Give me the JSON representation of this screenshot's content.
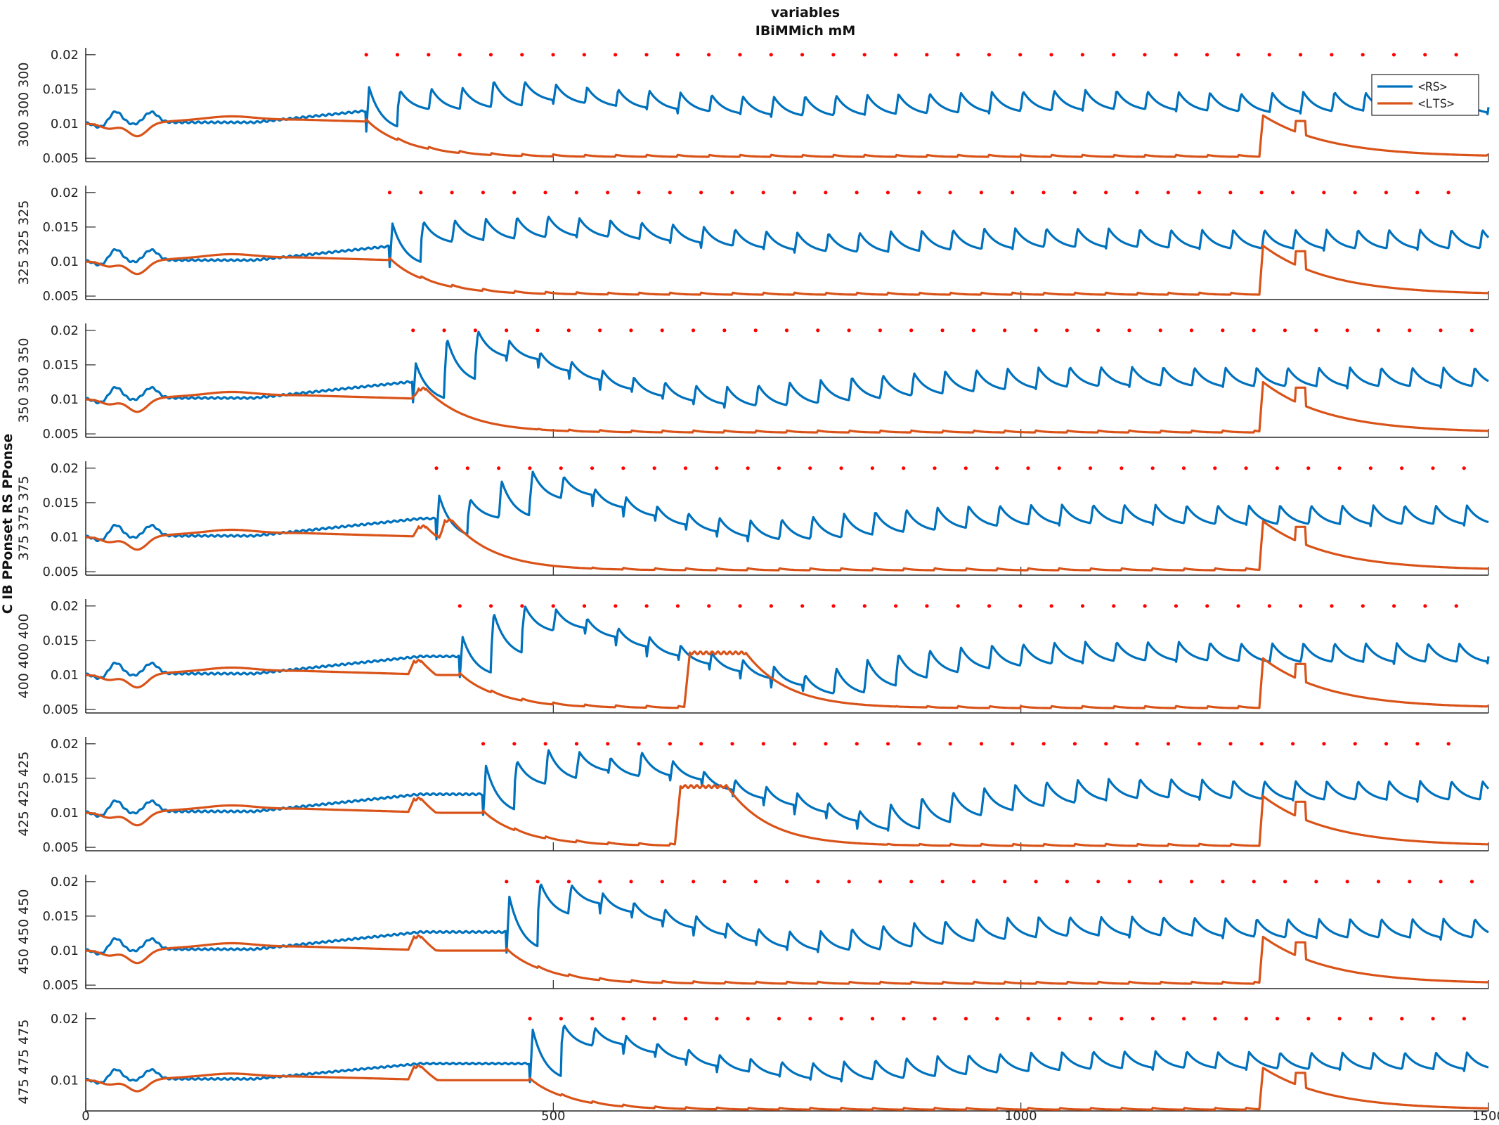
{
  "figure": {
    "title_line1": "variables",
    "title_line2": "IBiMMich mM",
    "ylabel_outer": "C IB PPonset RS PPonse"
  },
  "legend": {
    "items": [
      {
        "label": "<RS>",
        "color": "#0072BD"
      },
      {
        "label": "<LTS>",
        "color": "#D95319"
      }
    ]
  },
  "colors": {
    "rs": "#0072BD",
    "lts": "#D95319",
    "spikes": "#FF0000",
    "axis": "#262626"
  },
  "chart_data": {
    "type": "line",
    "x_range": [
      0,
      1500
    ],
    "x_ticks": [
      0,
      500,
      1000,
      1500
    ],
    "x_tick_labels": [
      "0",
      "500",
      "1000",
      "1500"
    ],
    "y_range": [
      0.0045,
      0.021
    ],
    "y_ticks": [
      0.005,
      0.01,
      0.015,
      0.02
    ],
    "y_tick_labels": [
      "0.005",
      "0.01",
      "0.015",
      "0.02"
    ],
    "last_panel_y_tick_labels": [
      "",
      "0.01",
      "",
      "0.02"
    ],
    "series_names": [
      "<RS>",
      "<LTS>"
    ],
    "spike_y": 0.02,
    "panels": [
      {
        "row_label": "300 300 300",
        "pp_onset": 300,
        "spike_start": 300,
        "spike_end": 1485,
        "rs_peaks": [
          0.0153,
          0.0148,
          0.0151,
          0.0152,
          0.0162,
          0.0161,
          0.0157,
          0.0153,
          0.015,
          0.0148,
          0.0145,
          0.0142,
          0.014,
          0.0139,
          0.014,
          0.0141,
          0.0142,
          0.0143,
          0.0144,
          0.0145,
          0.0146,
          0.0147,
          0.0148,
          0.0149,
          0.0148,
          0.0147,
          0.0146,
          0.0145,
          0.0144,
          0.0145,
          0.0146,
          0.0146,
          0.0145,
          0.0145,
          0.0144,
          0.0143,
          0.0142,
          0.0142,
          0.0142,
          0.0142,
          0.0142,
          0.0142,
          0.0142,
          0.0142,
          0.0142,
          0.0142
        ],
        "lts_bumps": [],
        "lts_big_at": 1255,
        "lts_big_peak": 0.0112
      },
      {
        "row_label": "325 325 325",
        "pp_onset": 325,
        "spike_start": 325,
        "spike_end": 1485,
        "rs_peaks": [
          0.0155,
          0.0158,
          0.016,
          0.0162,
          0.0164,
          0.0166,
          0.0163,
          0.016,
          0.0157,
          0.0154,
          0.015,
          0.0147,
          0.0144,
          0.0142,
          0.0141,
          0.0142,
          0.0144,
          0.0145,
          0.0146,
          0.0148,
          0.0148,
          0.0148,
          0.0148,
          0.0148,
          0.0147,
          0.0146,
          0.0146,
          0.0146,
          0.0146,
          0.0146,
          0.0146,
          0.0146,
          0.0146,
          0.0146,
          0.0146,
          0.0146,
          0.0146,
          0.0146,
          0.0146,
          0.0146,
          0.0146,
          0.0146,
          0.0146,
          0.0146,
          0.0146
        ],
        "lts_bumps": [],
        "lts_big_at": 1255,
        "lts_big_peak": 0.0123
      },
      {
        "row_label": "350 350 350",
        "pp_onset": 350,
        "spike_start": 350,
        "spike_end": 1485,
        "rs_peaks": [
          0.0152,
          0.0188,
          0.0199,
          0.0185,
          0.0168,
          0.0155,
          0.0142,
          0.0132,
          0.0125,
          0.012,
          0.0118,
          0.0121,
          0.0125,
          0.0128,
          0.0132,
          0.0135,
          0.0138,
          0.0141,
          0.0143,
          0.0145,
          0.0146,
          0.0147,
          0.0147,
          0.0147,
          0.0147,
          0.0146,
          0.0146,
          0.0146,
          0.0146,
          0.0146,
          0.0146,
          0.0146,
          0.0146,
          0.0146,
          0.0146,
          0.0146,
          0.0146,
          0.0146,
          0.0146,
          0.0146,
          0.0146,
          0.0146,
          0.0146,
          0.0146
        ],
        "lts_bumps": [
          {
            "at": 350,
            "peak": 0.0115
          }
        ],
        "lts_big_at": 1255,
        "lts_big_peak": 0.0125
      },
      {
        "row_label": "375 375 375",
        "pp_onset": 375,
        "spike_start": 375,
        "spike_end": 1485,
        "rs_peaks": [
          0.016,
          0.0155,
          0.0182,
          0.0195,
          0.0188,
          0.017,
          0.0158,
          0.0145,
          0.0135,
          0.0128,
          0.0124,
          0.0126,
          0.013,
          0.0134,
          0.0137,
          0.014,
          0.0143,
          0.0145,
          0.0146,
          0.0147,
          0.0147,
          0.0147,
          0.0147,
          0.0147,
          0.0146,
          0.0146,
          0.0146,
          0.0146,
          0.0146,
          0.0146,
          0.0146,
          0.0146,
          0.0146,
          0.0146,
          0.0146,
          0.0146,
          0.0146,
          0.0146,
          0.0146,
          0.0146,
          0.0146,
          0.0146,
          0.0146
        ],
        "lts_bumps": [
          {
            "at": 350,
            "peak": 0.0115
          },
          {
            "at": 378,
            "peak": 0.0124
          }
        ],
        "lts_big_at": 1255,
        "lts_big_peak": 0.0123
      },
      {
        "row_label": "400 400 400",
        "pp_onset": 400,
        "spike_start": 400,
        "spike_end": 1485,
        "rs_peaks": [
          0.0155,
          0.019,
          0.02,
          0.0195,
          0.0182,
          0.0168,
          0.0155,
          0.0143,
          0.0132,
          0.0122,
          0.0112,
          0.01,
          0.011,
          0.0122,
          0.013,
          0.0136,
          0.014,
          0.0143,
          0.0145,
          0.0147,
          0.0148,
          0.0148,
          0.0148,
          0.0148,
          0.0147,
          0.0146,
          0.0146,
          0.0146,
          0.0146,
          0.0146,
          0.0146,
          0.0146,
          0.0146,
          0.0146,
          0.0146,
          0.0146,
          0.0146,
          0.0146,
          0.0146,
          0.0146,
          0.0146,
          0.0146
        ],
        "lts_bumps": [
          {
            "at": 345,
            "peak": 0.012
          },
          {
            "at": 640,
            "peak": 0.0132,
            "hold": 60
          }
        ],
        "lts_big_at": 1255,
        "lts_big_peak": 0.0124
      },
      {
        "row_label": "425 425 425",
        "pp_onset": 425,
        "spike_start": 425,
        "spike_end": 1485,
        "rs_peaks": [
          0.0168,
          0.0175,
          0.0192,
          0.0188,
          0.018,
          0.0188,
          0.0175,
          0.016,
          0.0148,
          0.0138,
          0.0128,
          0.0115,
          0.0103,
          0.0112,
          0.0122,
          0.013,
          0.0136,
          0.0141,
          0.0145,
          0.0148,
          0.0149,
          0.0149,
          0.0149,
          0.0148,
          0.0147,
          0.0146,
          0.0146,
          0.0146,
          0.0146,
          0.0146,
          0.0146,
          0.0146,
          0.0146,
          0.0146,
          0.0146,
          0.0146,
          0.0146,
          0.0146,
          0.0146,
          0.0146,
          0.0146
        ],
        "lts_bumps": [
          {
            "at": 345,
            "peak": 0.012
          },
          {
            "at": 630,
            "peak": 0.0138,
            "hold": 50
          }
        ],
        "lts_big_at": 1255,
        "lts_big_peak": 0.0124
      },
      {
        "row_label": "450 450 450",
        "pp_onset": 450,
        "spike_start": 450,
        "spike_end": 1485,
        "rs_peaks": [
          0.0178,
          0.0198,
          0.0195,
          0.0183,
          0.017,
          0.016,
          0.015,
          0.014,
          0.0132,
          0.0128,
          0.0128,
          0.0132,
          0.0136,
          0.014,
          0.0143,
          0.0146,
          0.0148,
          0.0149,
          0.0149,
          0.0149,
          0.0149,
          0.0149,
          0.0148,
          0.0147,
          0.0146,
          0.0146,
          0.0146,
          0.0146,
          0.0146,
          0.0146,
          0.0146,
          0.0146,
          0.0146,
          0.0146,
          0.0146,
          0.0146,
          0.0146,
          0.0146,
          0.0146,
          0.0146
        ],
        "lts_bumps": [
          {
            "at": 345,
            "peak": 0.012
          }
        ],
        "lts_big_at": 1255,
        "lts_big_peak": 0.012
      },
      {
        "row_label": "475 475 475",
        "pp_onset": 475,
        "spike_start": 475,
        "spike_end": 1480,
        "rs_peaks": [
          0.0182,
          0.019,
          0.0185,
          0.0172,
          0.016,
          0.015,
          0.0141,
          0.0135,
          0.013,
          0.0128,
          0.013,
          0.0133,
          0.0136,
          0.0139,
          0.0141,
          0.0143,
          0.0145,
          0.0146,
          0.0147,
          0.0147,
          0.0147,
          0.0147,
          0.0146,
          0.0146,
          0.0145,
          0.0145,
          0.0145,
          0.0145,
          0.0145,
          0.0145,
          0.0145,
          0.0145,
          0.0145,
          0.0145,
          0.0145,
          0.0145,
          0.0145,
          0.0145,
          0.0145
        ],
        "lts_bumps": [
          {
            "at": 345,
            "peak": 0.0122
          }
        ],
        "lts_big_at": 1255,
        "lts_big_peak": 0.012
      }
    ]
  }
}
